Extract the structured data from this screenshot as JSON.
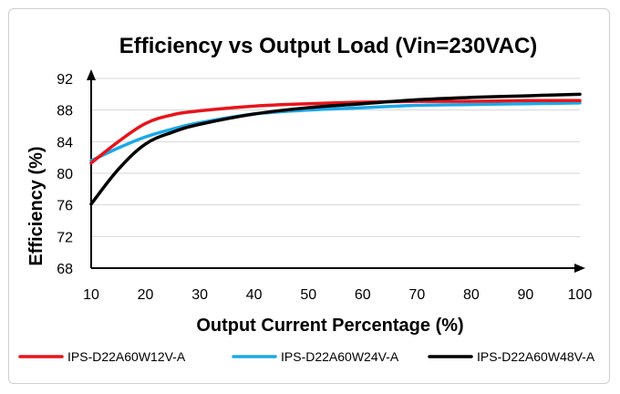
{
  "chart_data": {
    "type": "line",
    "title": "Efficiency vs Output Load (Vin=230VAC)",
    "xlabel": "Output Current Percentage (%)",
    "ylabel": "Efficiency (%)",
    "xlim": [
      10,
      100
    ],
    "ylim": [
      68,
      92
    ],
    "xticks": [
      "10",
      "20",
      "30",
      "40",
      "50",
      "60",
      "70",
      "80",
      "90",
      "100"
    ],
    "yticks": [
      "68",
      "72",
      "76",
      "80",
      "84",
      "88",
      "92"
    ],
    "grid": "horizontal",
    "legend_position": "bottom",
    "x": [
      10,
      15,
      20,
      25,
      30,
      40,
      50,
      60,
      70,
      80,
      90,
      100
    ],
    "series": [
      {
        "name": "IPS-D22A60W12V-A",
        "color": "#e8141b",
        "values": [
          81.3,
          84.0,
          86.3,
          87.4,
          87.9,
          88.5,
          88.8,
          89.0,
          89.1,
          89.1,
          89.2,
          89.2
        ]
      },
      {
        "name": "IPS-D22A60W24V-A",
        "color": "#1ba8e8",
        "values": [
          81.6,
          83.2,
          84.6,
          85.6,
          86.4,
          87.5,
          88.0,
          88.3,
          88.6,
          88.7,
          88.8,
          88.9
        ]
      },
      {
        "name": "IPS-D22A60W48V-A",
        "color": "#000000",
        "values": [
          76.1,
          80.5,
          83.7,
          85.2,
          86.2,
          87.5,
          88.3,
          88.8,
          89.3,
          89.6,
          89.8,
          90.0
        ]
      }
    ]
  }
}
